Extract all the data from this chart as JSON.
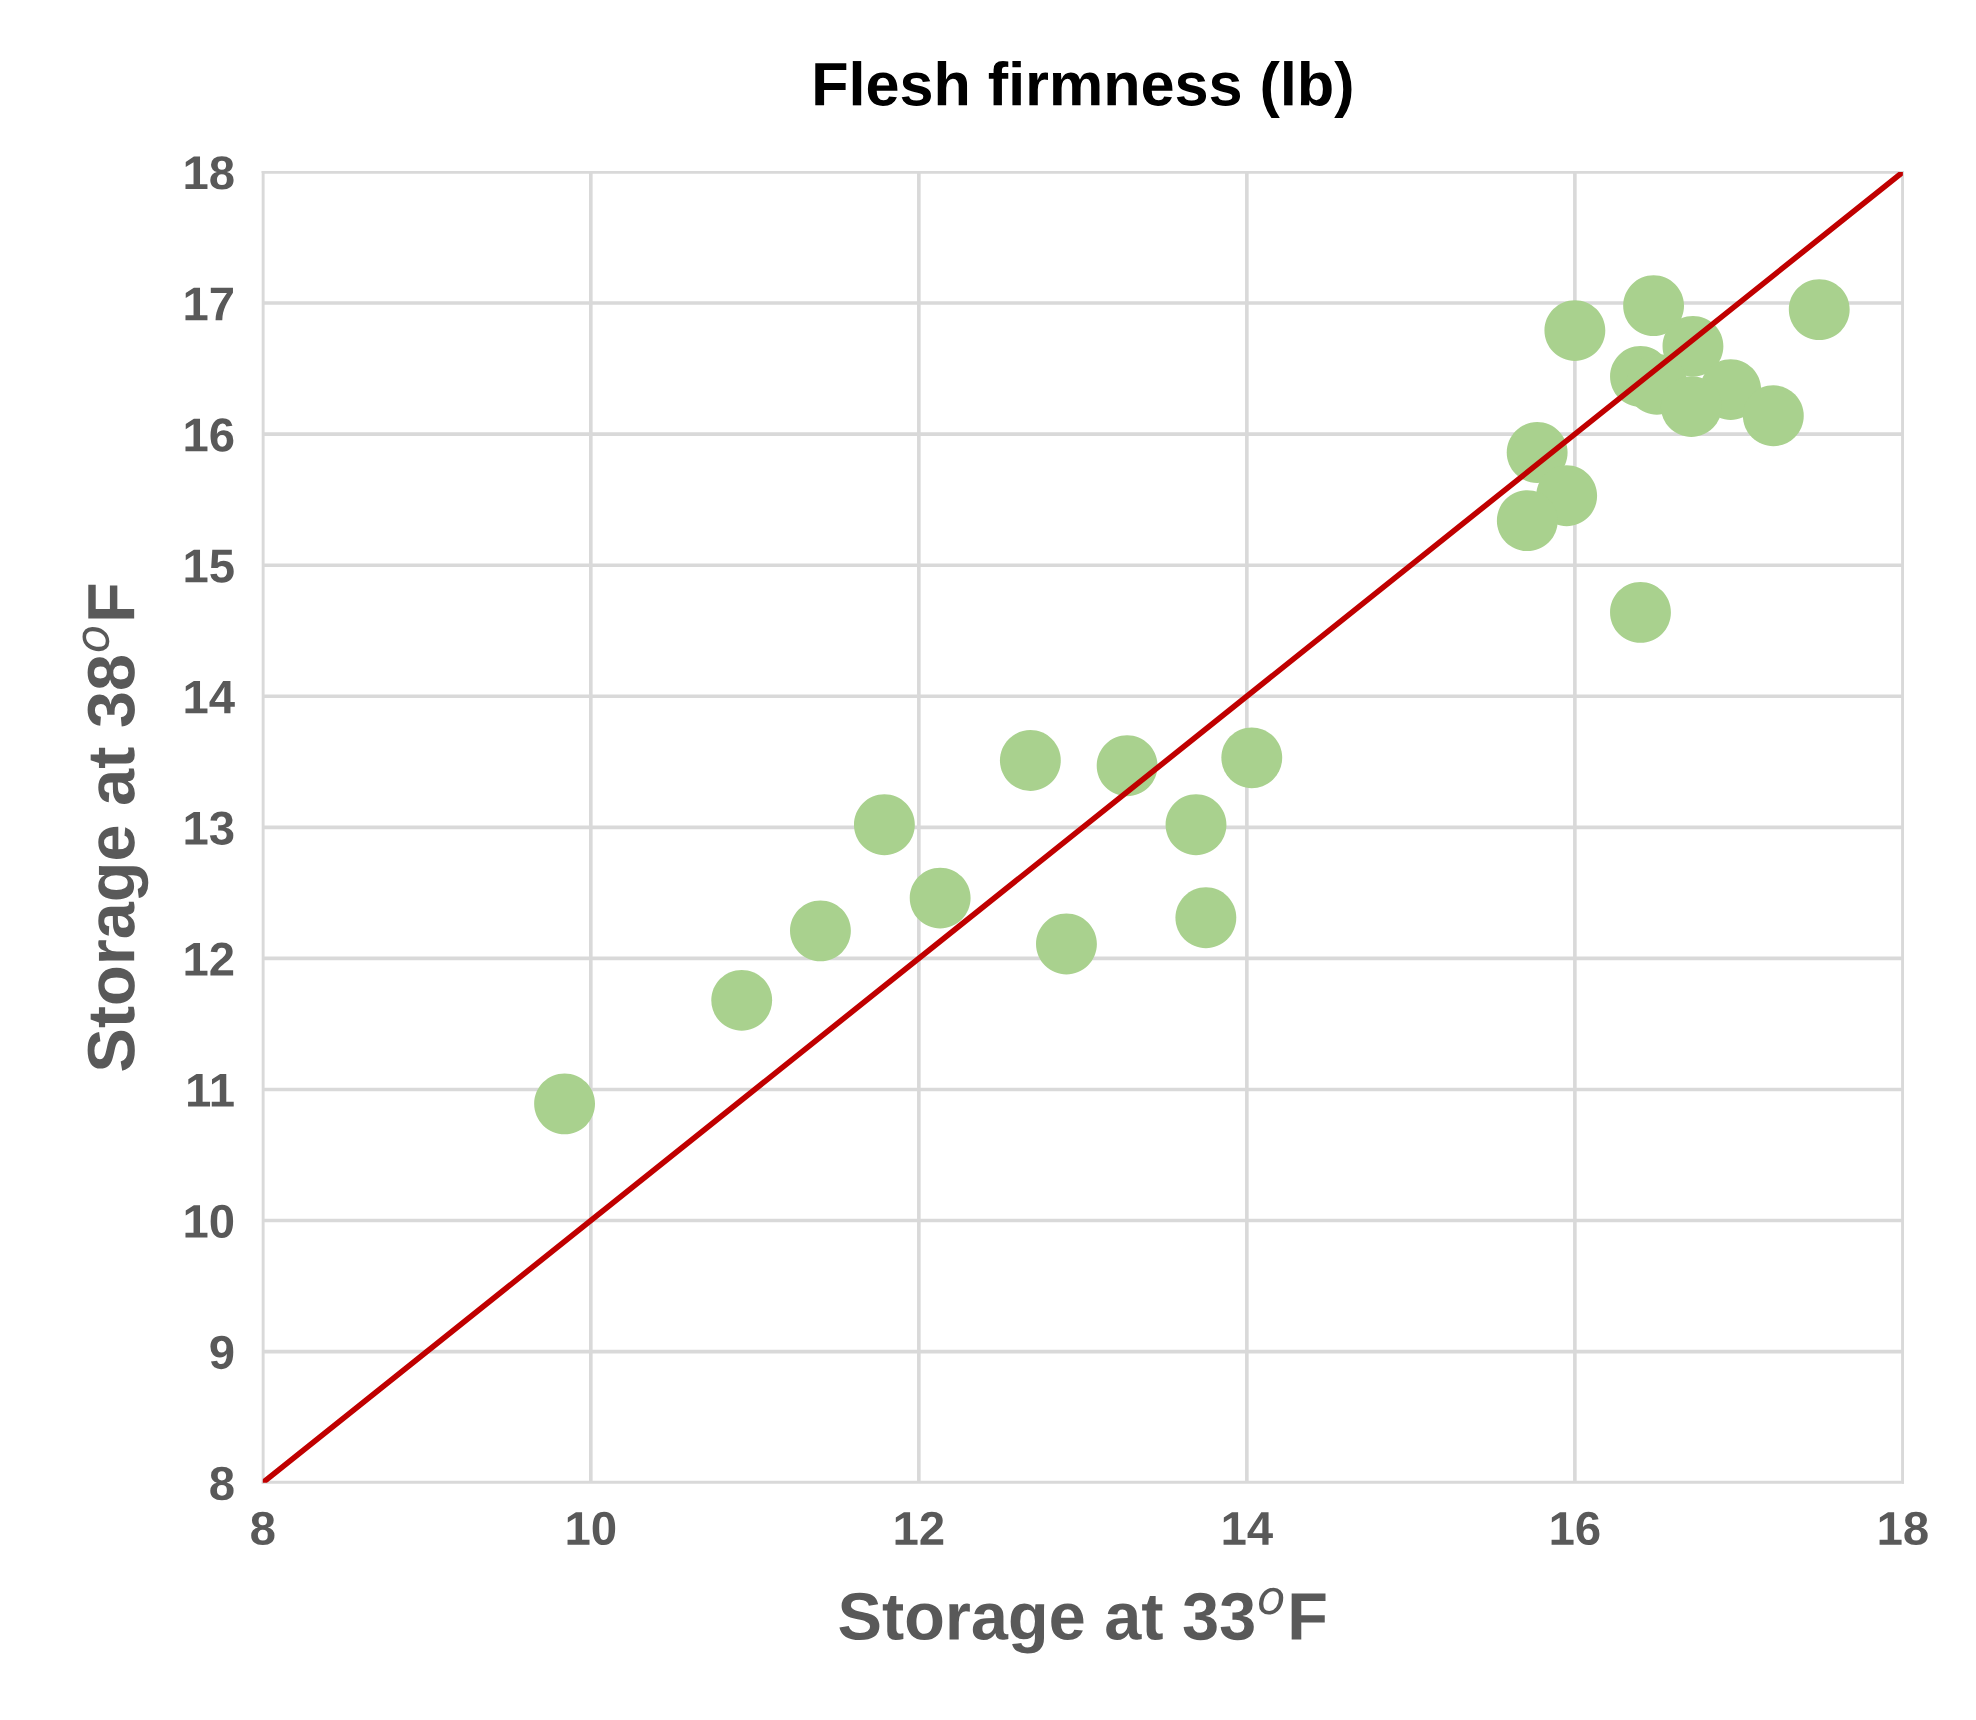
{
  "chart_data": {
    "type": "scatter",
    "title": "Flesh firmness (lb)",
    "xlabel": "Storage at 33$^{o}$F",
    "ylabel": "Storage at 38$^{o}$F",
    "xlim": [
      8,
      18
    ],
    "xticks": [
      8,
      10,
      12,
      14,
      16,
      18
    ],
    "ylim": [
      8,
      18
    ],
    "yticks": [
      8,
      9,
      10,
      11,
      12,
      13,
      14,
      15,
      16,
      17,
      18
    ],
    "grid": true,
    "series": [
      {
        "marker": "circle",
        "color": "#a9d18e",
        "x": [
          9.84,
          10.92,
          11.4,
          11.79,
          12.13,
          12.68,
          12.9,
          13.27,
          13.69,
          13.75,
          14.03,
          16.0,
          16.48,
          16.72,
          17.49,
          16.4,
          16.5,
          16.95,
          16.71,
          17.21,
          15.77,
          15.95,
          15.71,
          16.4
        ],
        "values": [
          10.89,
          11.68,
          12.21,
          13.02,
          12.46,
          13.51,
          12.11,
          13.47,
          13.02,
          12.31,
          13.53,
          16.79,
          16.98,
          16.67,
          16.95,
          16.44,
          16.38,
          16.34,
          16.21,
          16.14,
          15.86,
          15.53,
          15.34,
          14.64
        ]
      },
      {
        "type": "line",
        "marker": "none",
        "color": "#c00000",
        "x": [
          8,
          18
        ],
        "values": [
          8,
          18
        ]
      }
    ]
  }
}
